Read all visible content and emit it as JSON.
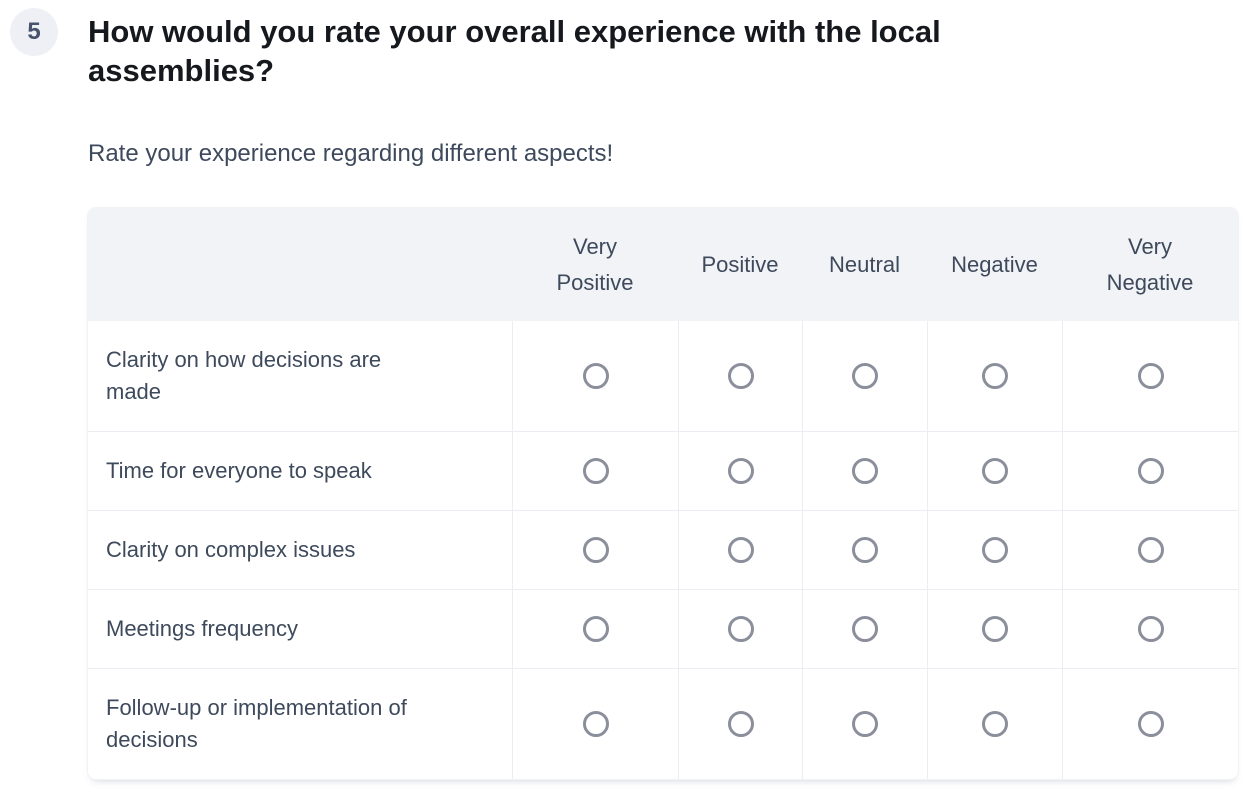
{
  "question": {
    "number": "5",
    "title": "How would you rate your overall experience with the local assemblies?",
    "subtitle": "Rate your experience regarding different aspects!"
  },
  "matrix": {
    "columns": [
      "Very Positive",
      "Positive",
      "Neutral",
      "Negative",
      "Very Negative"
    ],
    "rows": [
      {
        "label": "Clarity on how decisions are made"
      },
      {
        "label": "Time for everyone to speak"
      },
      {
        "label": "Clarity on complex issues"
      },
      {
        "label": "Meetings frequency"
      },
      {
        "label": "Follow-up or implementation of decisions"
      }
    ]
  },
  "colors": {
    "title_text": "#15181d",
    "secondary_text": "#3e4a5c",
    "header_bg": "#f1f3f6",
    "divider": "#ececf2",
    "radio_border": "#8b8f9b",
    "badge_bg": "#eef0f5",
    "badge_text": "#47536b"
  }
}
